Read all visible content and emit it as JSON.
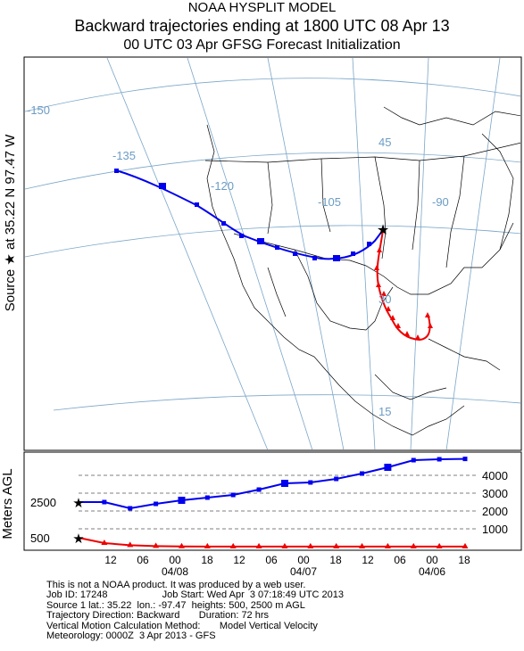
{
  "header": {
    "line1": "NOAA HYSPLIT MODEL",
    "line2": "Backward trajectories ending at 1800 UTC 08 Apr 13",
    "line3": "00 UTC 03 Apr   GFSG  Forecast Initialization"
  },
  "source_label": "Source ★ at  35.22 N   97.47 W",
  "map": {
    "lon_labels": [
      "-150",
      "-135",
      "-120",
      "-105",
      "-90"
    ],
    "lat_labels": [
      "45",
      "30",
      "15"
    ],
    "colors": {
      "blue_traj": "#0000ee",
      "red_traj": "#ee0000",
      "grid": "#7aa6c8",
      "border": "#000000"
    }
  },
  "chart_data": {
    "type": "line",
    "ylabel": "Meters AGL",
    "yticks": [
      "4000",
      "3000",
      "2000",
      "1000"
    ],
    "height_labels": [
      "2500",
      "500"
    ],
    "x_ticks": [
      "12",
      "06",
      "00",
      "18",
      "12",
      "06",
      "00",
      "18",
      "12",
      "06",
      "00",
      "18"
    ],
    "date_labels": [
      "04/08",
      "04/07",
      "04/06"
    ],
    "series": [
      {
        "name": "",
        "color": "#0000ee",
        "marker": "square",
        "values": [
          2500,
          2500,
          2150,
          2400,
          2600,
          2750,
          2900,
          3200,
          3550,
          3600,
          3800,
          4100,
          4450,
          4850,
          4900,
          4920
        ]
      },
      {
        "name": "",
        "color": "#ee0000",
        "marker": "triangle",
        "values": [
          500,
          200,
          80,
          30,
          10,
          5,
          5,
          5,
          5,
          5,
          5,
          5,
          5,
          5,
          5,
          5
        ]
      }
    ]
  },
  "info": {
    "l1": "This is not a NOAA product. It was produced by a web user.",
    "l2": "Job ID: 17248                    Job Start: Wed Apr  3 07:18:49 UTC 2013",
    "l3": "Source 1 lat.: 35.22  lon.: -97.47  heights: 500, 2500 m AGL",
    "l4": "Trajectory Direction: Backward       Duration: 72 hrs",
    "l5": "Vertical Motion Calculation Method:       Model Vertical Velocity",
    "l6": "Meteorology: 0000Z  3 Apr 2013 - GFS"
  }
}
